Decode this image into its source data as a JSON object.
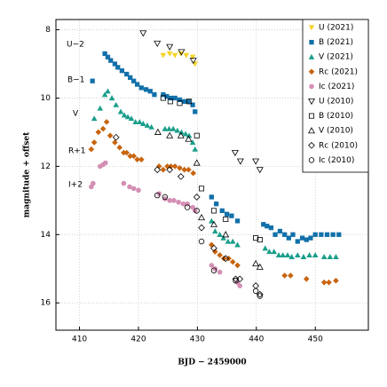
{
  "chart_data": {
    "type": "scatter",
    "xlabel": "BJD − 2459000",
    "ylabel": "magnitude + offset",
    "annotations": [
      "U−2",
      "B−1",
      "V",
      "R+1",
      "I+2"
    ],
    "xlim": [
      406,
      459
    ],
    "ylim": [
      16.8,
      7.7
    ],
    "xticks": [
      410,
      420,
      430,
      440,
      450
    ],
    "yticks": [
      8,
      10,
      12,
      14,
      16
    ],
    "grid": true,
    "legend": "upper right",
    "series": [
      {
        "name": "U (2021)",
        "color": "#f5d327",
        "marker": "v",
        "filled": true,
        "x": [
          424.2,
          425.3,
          426.2,
          427.2,
          428.1,
          429.2,
          429.6
        ],
        "values": [
          8.75,
          8.7,
          8.75,
          8.7,
          8.75,
          8.8,
          9.0
        ]
      },
      {
        "name": "B (2021)",
        "color": "#1170aa",
        "marker": "s",
        "filled": true,
        "x": [
          412.2,
          414.3,
          414.8,
          415.3,
          416,
          416.5,
          417.2,
          418,
          418.6,
          419.2,
          419.8,
          420.5,
          421.3,
          422,
          422.7,
          424.2,
          424.8,
          425.5,
          426.2,
          427,
          427.8,
          428.5,
          429.2,
          429.6,
          432.4,
          433.2,
          434.2,
          435,
          435.8,
          436.8,
          441.2,
          441.8,
          442.5,
          443.2,
          444,
          444.8,
          445.5,
          446.2,
          447,
          447.8,
          448.5,
          449.2,
          450,
          451,
          452,
          453,
          454
        ],
        "values": [
          9.5,
          8.7,
          8.8,
          8.9,
          9.0,
          9.1,
          9.2,
          9.3,
          9.4,
          9.5,
          9.6,
          9.7,
          9.75,
          9.8,
          9.9,
          9.9,
          9.95,
          10.0,
          10.0,
          10.05,
          10.1,
          10.1,
          10.2,
          10.4,
          12.9,
          13.1,
          13.3,
          13.4,
          13.45,
          13.6,
          13.7,
          13.75,
          13.8,
          14.0,
          13.9,
          14.0,
          14.1,
          14.0,
          14.2,
          14.1,
          14.15,
          14.1,
          14.0,
          14.0,
          14.0,
          14.0,
          14.0
        ]
      },
      {
        "name": "V (2021)",
        "color": "#1a9e8a",
        "marker": "^",
        "filled": true,
        "x": [
          412.5,
          413.5,
          414.3,
          414.8,
          415.5,
          416.2,
          417,
          417.6,
          418.2,
          418.8,
          419.5,
          420.2,
          420.8,
          421.5,
          422.2,
          424.5,
          425.2,
          425.9,
          426.6,
          427.3,
          428,
          428.6,
          429.2,
          429.6,
          432.4,
          433,
          433.8,
          434.4,
          435.2,
          436,
          436.8,
          441.5,
          442.2,
          443,
          443.8,
          444.5,
          445.3,
          446,
          447,
          448,
          449,
          450,
          451.5,
          452.5,
          453.5
        ],
        "values": [
          10.6,
          10.3,
          9.9,
          9.8,
          10.0,
          10.2,
          10.4,
          10.5,
          10.55,
          10.6,
          10.7,
          10.7,
          10.75,
          10.8,
          10.85,
          10.9,
          10.9,
          10.9,
          10.95,
          11.0,
          11.05,
          11.1,
          11.3,
          11.5,
          13.6,
          13.9,
          14.0,
          14.1,
          14.2,
          14.2,
          14.3,
          14.4,
          14.5,
          14.5,
          14.6,
          14.6,
          14.6,
          14.65,
          14.6,
          14.65,
          14.6,
          14.6,
          14.65,
          14.65,
          14.65
        ]
      },
      {
        "name": "Rc (2021)",
        "color": "#c8640f",
        "marker": "D",
        "filled": true,
        "x": [
          412,
          412.5,
          413.2,
          414,
          414.6,
          415.2,
          416,
          416.8,
          417.5,
          418,
          418.6,
          419.2,
          419.8,
          420.5,
          423.5,
          424.2,
          424.9,
          425.5,
          426.2,
          427,
          427.8,
          428.5,
          429.3,
          432.4,
          433,
          433.8,
          434.5,
          435.3,
          436,
          436.8,
          444.8,
          445.8,
          448.5,
          451.5,
          452.3,
          453.5
        ],
        "values": [
          11.5,
          11.3,
          11.0,
          10.9,
          10.7,
          11.1,
          11.3,
          11.45,
          11.6,
          11.6,
          11.7,
          11.7,
          11.8,
          11.8,
          12.0,
          12.1,
          12.0,
          12.0,
          12.0,
          12.05,
          12.1,
          12.1,
          12.2,
          14.3,
          14.5,
          14.6,
          14.7,
          14.7,
          14.8,
          14.9,
          15.2,
          15.2,
          15.3,
          15.4,
          15.4,
          15.35
        ]
      },
      {
        "name": "Ic (2021)",
        "color": "#d48fb4",
        "marker": "o",
        "filled": true,
        "x": [
          412,
          412.3,
          413.5,
          414,
          414.4,
          417.5,
          418.5,
          419.2,
          420,
          423.5,
          424.5,
          425.3,
          426,
          426.8,
          427.6,
          428.3,
          429.2,
          429.6,
          432.4,
          433,
          433.8,
          436.8,
          437.2
        ],
        "values": [
          12.6,
          12.5,
          12.0,
          11.95,
          11.9,
          12.5,
          12.6,
          12.65,
          12.7,
          12.8,
          12.95,
          13.0,
          13.0,
          13.05,
          13.1,
          13.1,
          13.2,
          13.3,
          14.9,
          15.0,
          15.1,
          15.4,
          15.5
        ]
      },
      {
        "name": "U (2010)",
        "color": "#000000",
        "marker": "v",
        "filled": false,
        "x": [
          420.8,
          423.2,
          425.3,
          427.3,
          429.3,
          436.4,
          437.3,
          439.9,
          440.6
        ],
        "values": [
          8.1,
          8.4,
          8.5,
          8.65,
          8.9,
          11.6,
          11.85,
          11.85,
          12.1
        ]
      },
      {
        "name": "B (2010)",
        "color": "#000000",
        "marker": "s",
        "filled": false,
        "x": [
          424.2,
          425.4,
          427,
          428.6,
          429.9,
          430.7,
          432.8,
          434.8,
          439.9,
          440.6
        ],
        "values": [
          10.0,
          10.1,
          10.15,
          10.1,
          11.1,
          12.65,
          13.3,
          13.55,
          14.1,
          14.15
        ]
      },
      {
        "name": "V (2010)",
        "color": "#000000",
        "marker": "^",
        "filled": false,
        "x": [
          423.3,
          425.3,
          427.2,
          428.5,
          429.9,
          430.7,
          432.8,
          434.8,
          439.9,
          440.6
        ],
        "values": [
          11.0,
          11.1,
          11.1,
          11.2,
          11.9,
          13.5,
          13.7,
          14.0,
          14.85,
          14.95
        ]
      },
      {
        "name": "Rc (2010)",
        "color": "#000000",
        "marker": "D",
        "filled": false,
        "x": [
          416.2,
          423.2,
          425.3,
          427.2,
          429.9,
          430.7,
          432.8,
          434.8,
          436.5,
          437.2,
          439.9,
          440.6
        ],
        "values": [
          11.15,
          12.1,
          12.1,
          12.3,
          12.9,
          13.8,
          14.4,
          14.7,
          15.3,
          15.3,
          15.5,
          15.75
        ]
      },
      {
        "name": "Ic (2010)",
        "color": "#000000",
        "marker": "o",
        "filled": false,
        "x": [
          423.2,
          424.5,
          428.3,
          429.9,
          430.7,
          432.8,
          436.5,
          439.9,
          440.6
        ],
        "values": [
          12.85,
          12.9,
          13.2,
          13.3,
          14.2,
          15.05,
          15.35,
          15.65,
          15.8
        ]
      }
    ]
  }
}
